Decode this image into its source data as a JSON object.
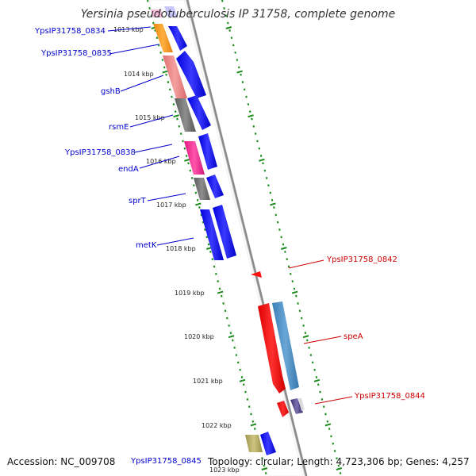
{
  "title": "Yersinia pseudotuberculosis IP 31758, complete genome",
  "footer": {
    "accession": "Accession: NC_009708",
    "topology": "Topology: circular; Length: 4,723,306 bp; Genes: 4,257"
  },
  "colors": {
    "backbone": "#8a8a8a",
    "tick": "#1a8a1a",
    "forward_label": "#0000cc",
    "reverse_label": "#cc0000"
  },
  "kbp_ticks": [
    "1013 kbp",
    "1014 kbp",
    "1015 kbp",
    "1016 kbp",
    "1017 kbp",
    "1018 kbp",
    "1019 kbp",
    "1020 kbp",
    "1021 kbp",
    "1022 kbp",
    "1023 kbp"
  ],
  "left_genes": [
    {
      "label": "YpsIP31758_0834",
      "color": "#f4a020"
    },
    {
      "label": "YpsIP31758_0835",
      "color": "#ee8888"
    },
    {
      "label": "gshB",
      "color": "#ee8888"
    },
    {
      "label": "rsmE",
      "color": "#777777"
    },
    {
      "label": "YpsIP31758_0838",
      "color": "#ff3399"
    },
    {
      "label": "endA",
      "color": "#ff3399"
    },
    {
      "label": "sprT",
      "color": "#777777"
    },
    {
      "label": "metK",
      "color": "#0000ff"
    },
    {
      "label": "YpsIP31758_0845",
      "color": "#b0a860"
    }
  ],
  "right_genes": [
    {
      "label": "YpsIP31758_0842",
      "color": "#ff0000"
    },
    {
      "label": "speA",
      "color": "#ff0000"
    },
    {
      "label": "YpsIP31758_0844",
      "color": "#ff0000"
    }
  ]
}
